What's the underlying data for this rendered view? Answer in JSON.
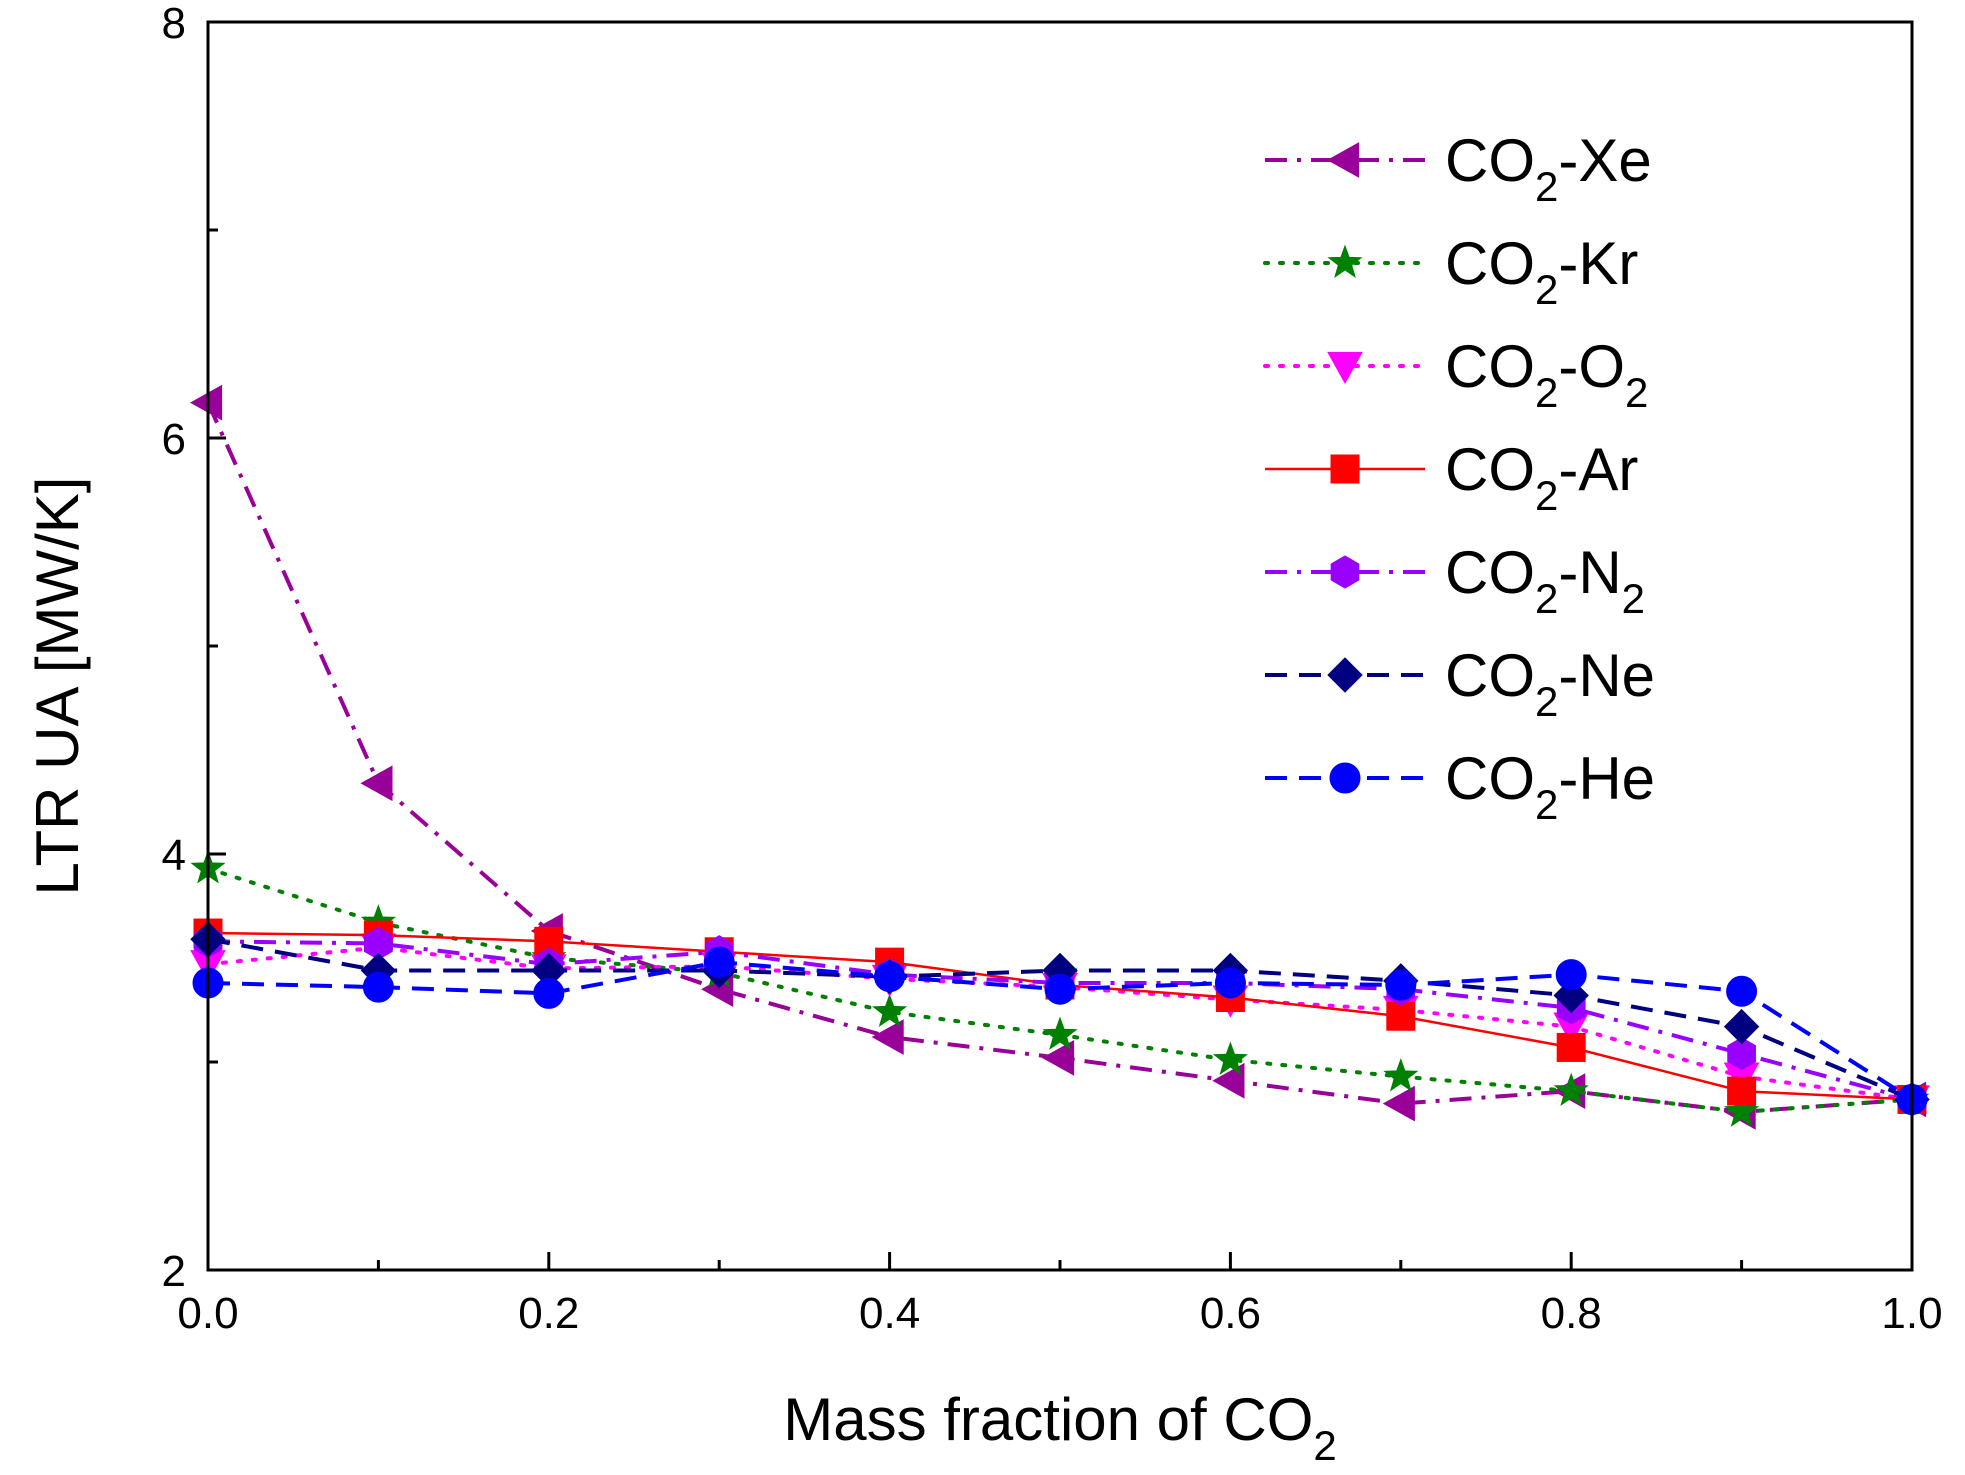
{
  "chart_data": {
    "type": "line",
    "xlabel": {
      "main": "Mass fraction of CO",
      "sub": "2"
    },
    "ylabel": "LTR UA [MW/K]",
    "xlim": [
      0,
      1.0
    ],
    "ylim": [
      2,
      8
    ],
    "x_ticks": [
      "0.0",
      "0.2",
      "0.4",
      "0.6",
      "0.8",
      "1.0"
    ],
    "y_ticks": [
      "2",
      "4",
      "6",
      "8"
    ],
    "x": [
      0.0,
      0.1,
      0.2,
      0.3,
      0.4,
      0.5,
      0.6,
      0.7,
      0.8,
      0.9,
      1.0
    ],
    "grid": false,
    "legend_position": "top-right",
    "series": [
      {
        "name": "CO2-Xe",
        "label_parts": [
          "CO",
          "2",
          "-Xe",
          ""
        ],
        "color": "#990099",
        "marker": "triangle-left",
        "dash": "dashdot",
        "values": [
          6.17,
          4.34,
          3.63,
          3.35,
          3.12,
          3.02,
          2.91,
          2.8,
          2.86,
          2.76,
          2.82
        ]
      },
      {
        "name": "CO2-Kr",
        "label_parts": [
          "CO",
          "2",
          "-Kr",
          ""
        ],
        "color": "#008000",
        "marker": "star",
        "dash": "dot",
        "values": [
          3.93,
          3.67,
          3.5,
          3.43,
          3.24,
          3.13,
          3.01,
          2.93,
          2.86,
          2.76,
          2.82
        ]
      },
      {
        "name": "CO2-O2",
        "label_parts": [
          "CO",
          "2",
          "-O",
          "2"
        ],
        "color": "#ff00ff",
        "marker": "triangle-down",
        "dash": "dot",
        "values": [
          3.47,
          3.55,
          3.45,
          3.46,
          3.4,
          3.36,
          3.3,
          3.25,
          3.17,
          2.93,
          2.82
        ]
      },
      {
        "name": "CO2-Ar",
        "label_parts": [
          "CO",
          "2",
          "-Ar",
          ""
        ],
        "color": "#ff0000",
        "marker": "square",
        "dash": "solid",
        "values": [
          3.62,
          3.61,
          3.58,
          3.53,
          3.48,
          3.37,
          3.31,
          3.22,
          3.07,
          2.86,
          2.82
        ]
      },
      {
        "name": "CO2-N2",
        "label_parts": [
          "CO",
          "2",
          "-N",
          "2"
        ],
        "color": "#9900ff",
        "marker": "hexagon",
        "dash": "dashdot",
        "values": [
          3.58,
          3.57,
          3.47,
          3.53,
          3.42,
          3.38,
          3.38,
          3.35,
          3.26,
          3.04,
          2.82
        ]
      },
      {
        "name": "CO2-Ne",
        "label_parts": [
          "CO",
          "2",
          "-Ne",
          ""
        ],
        "color": "#000080",
        "marker": "diamond",
        "dash": "dash",
        "values": [
          3.59,
          3.44,
          3.44,
          3.44,
          3.41,
          3.44,
          3.44,
          3.39,
          3.32,
          3.17,
          2.82
        ]
      },
      {
        "name": "CO2-He",
        "label_parts": [
          "CO",
          "2",
          "-He",
          ""
        ],
        "color": "#0000ff",
        "marker": "circle",
        "dash": "dash",
        "values": [
          3.38,
          3.36,
          3.33,
          3.48,
          3.41,
          3.35,
          3.38,
          3.37,
          3.42,
          3.34,
          2.82
        ]
      }
    ]
  }
}
